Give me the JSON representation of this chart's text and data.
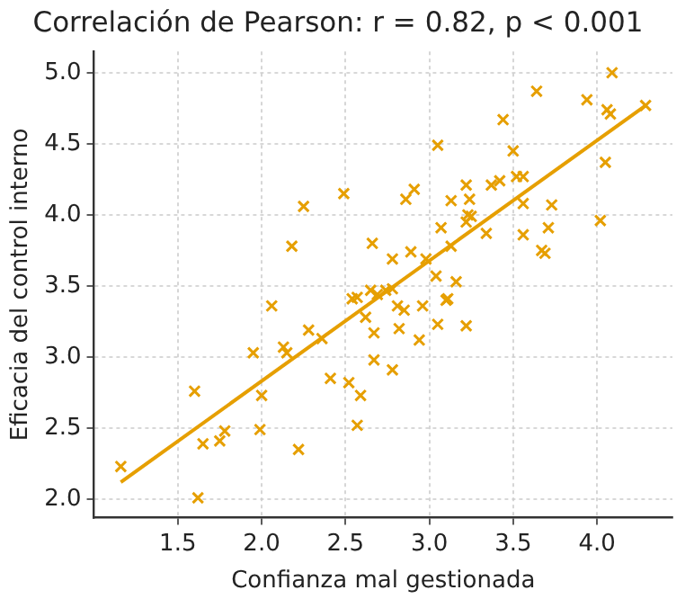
{
  "chart_data": {
    "type": "scatter",
    "title": "Correlación de Pearson: r = 0.82, p < 0.001",
    "xlabel": "Confianza mal gestionada",
    "ylabel": "Eficacia del control interno",
    "xlim": [
      1.0,
      4.45
    ],
    "ylim": [
      1.87,
      5.15
    ],
    "xticks": [
      {
        "value": 1.5,
        "label": "1.5"
      },
      {
        "value": 2.0,
        "label": "2.0"
      },
      {
        "value": 2.5,
        "label": "2.5"
      },
      {
        "value": 3.0,
        "label": "3.0"
      },
      {
        "value": 3.5,
        "label": "3.5"
      },
      {
        "value": 4.0,
        "label": "4.0"
      }
    ],
    "yticks": [
      {
        "value": 2.0,
        "label": "2.0"
      },
      {
        "value": 2.5,
        "label": "2.5"
      },
      {
        "value": 3.0,
        "label": "3.0"
      },
      {
        "value": 3.5,
        "label": "3.5"
      },
      {
        "value": 4.0,
        "label": "4.0"
      },
      {
        "value": 4.5,
        "label": "4.5"
      },
      {
        "value": 5.0,
        "label": "5.0"
      }
    ],
    "grid": true,
    "legend": false,
    "marker": "cross",
    "series": [
      {
        "color": "#e69f00",
        "x": [
          1.16,
          1.6,
          1.62,
          1.65,
          1.75,
          1.78,
          1.95,
          2.0,
          1.99,
          2.06,
          2.13,
          2.15,
          2.22,
          2.28,
          2.36,
          2.41,
          2.52,
          2.54,
          2.57,
          2.59,
          2.57,
          2.62,
          2.67,
          2.67,
          2.78,
          2.81,
          2.85,
          2.82,
          2.65,
          2.69,
          2.74,
          2.78,
          2.66,
          2.78,
          2.89,
          2.98,
          3.04,
          3.16,
          3.11,
          3.13,
          3.07,
          3.22,
          3.23,
          3.25,
          3.34,
          2.86,
          2.91,
          3.05,
          3.13,
          3.22,
          3.24,
          3.37,
          3.42,
          3.44,
          3.5,
          3.52,
          3.56,
          3.56,
          3.56,
          3.73,
          3.71,
          3.67,
          3.69,
          3.64,
          3.94,
          4.06,
          4.08,
          4.09,
          4.05,
          4.02,
          2.96,
          3.1,
          3.05,
          3.22,
          2.94,
          2.25,
          2.49,
          2.18,
          4.29
        ],
        "values": [
          2.23,
          2.76,
          2.01,
          2.39,
          2.41,
          2.48,
          3.03,
          2.73,
          2.49,
          3.36,
          3.07,
          3.03,
          2.35,
          3.19,
          3.13,
          2.85,
          2.82,
          3.41,
          3.42,
          2.73,
          2.52,
          3.28,
          3.17,
          2.98,
          2.91,
          3.36,
          3.33,
          3.2,
          3.47,
          3.44,
          3.47,
          3.48,
          3.8,
          3.69,
          3.74,
          3.69,
          3.57,
          3.53,
          3.41,
          3.78,
          3.91,
          3.95,
          4.0,
          3.99,
          3.87,
          4.11,
          4.18,
          4.49,
          4.1,
          4.21,
          4.11,
          4.21,
          4.24,
          4.67,
          4.45,
          4.27,
          4.27,
          4.08,
          3.86,
          4.07,
          3.91,
          3.75,
          3.73,
          4.87,
          4.81,
          4.74,
          4.71,
          5.0,
          4.37,
          3.96,
          3.36,
          3.4,
          3.23,
          3.22,
          3.12,
          4.06,
          4.15,
          3.78,
          4.77
        ]
      },
      {
        "type": "line",
        "marker": "none",
        "color": "#e69f00",
        "x": [
          1.16,
          4.29
        ],
        "values": [
          2.12,
          4.77
        ]
      }
    ]
  }
}
